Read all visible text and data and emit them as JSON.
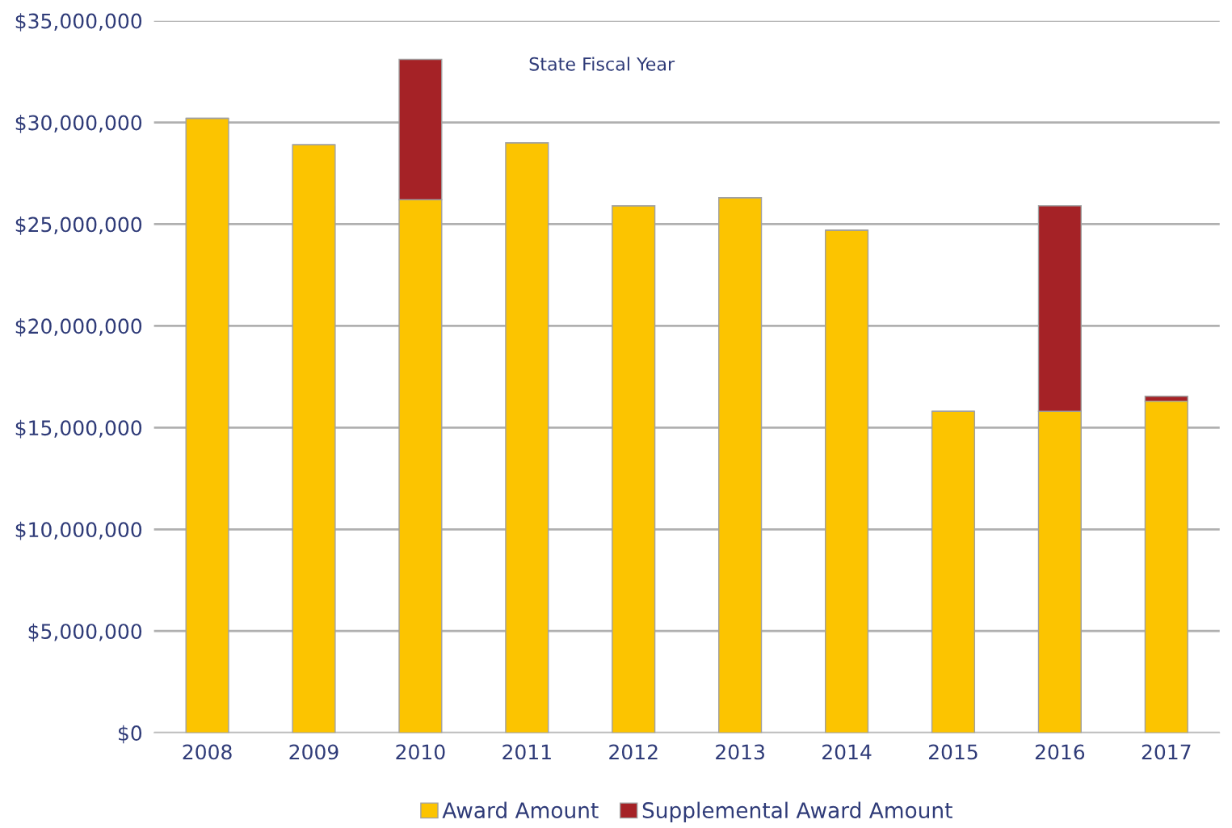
{
  "chart_data": {
    "type": "bar",
    "stacked": true,
    "xlabel": "State Fiscal Year",
    "categories": [
      "2008",
      "2009",
      "2010",
      "2011",
      "2012",
      "2013",
      "2014",
      "2015",
      "2016",
      "2017"
    ],
    "series": [
      {
        "name": "Award Amount",
        "color": "#fcc400",
        "values": [
          30200000,
          28900000,
          26200000,
          29000000,
          25900000,
          26300000,
          24700000,
          15800000,
          15800000,
          16300000
        ]
      },
      {
        "name": "Supplemental Award Amount",
        "color": "#a52226",
        "values": [
          null,
          null,
          6900000,
          null,
          null,
          null,
          null,
          null,
          10100000,
          240000
        ]
      }
    ],
    "ylim": [
      0,
      35000000
    ],
    "yticks": [
      {
        "value": 0,
        "label": "$0"
      },
      {
        "value": 5000000,
        "label": "$5,000,000"
      },
      {
        "value": 10000000,
        "label": "$10,000,000"
      },
      {
        "value": 15000000,
        "label": "$15,000,000"
      },
      {
        "value": 20000000,
        "label": "$20,000,000"
      },
      {
        "value": 25000000,
        "label": "$25,000,000"
      },
      {
        "value": 30000000,
        "label": "$30,000,000"
      },
      {
        "value": 35000000,
        "label": "$35,000,000"
      }
    ],
    "grid": "y",
    "legend": "bottom"
  }
}
